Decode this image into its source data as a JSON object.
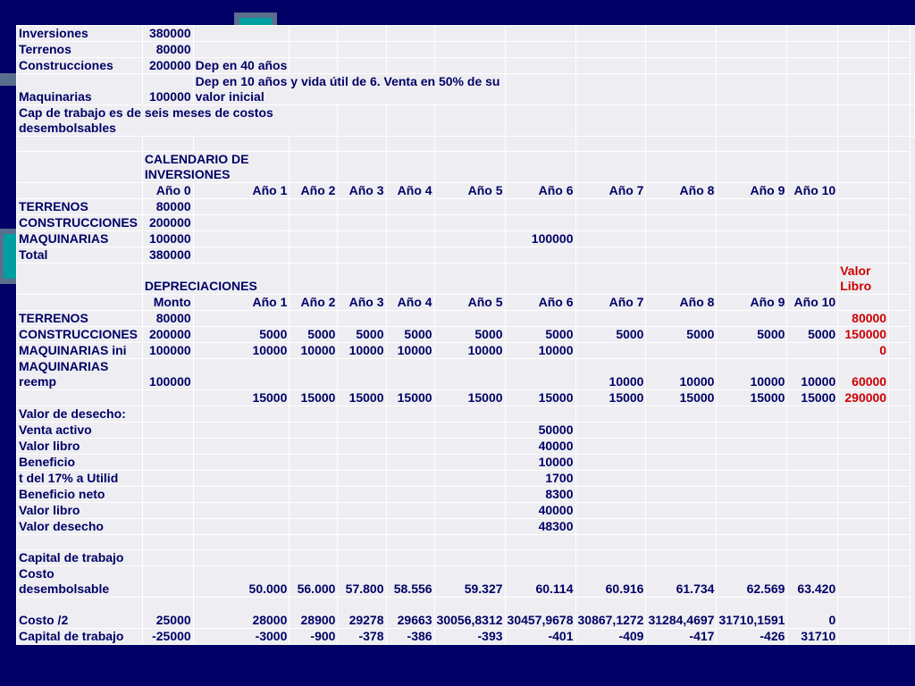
{
  "accent_colors": {
    "background": "#000066",
    "cell": "#eeeef2",
    "text": "#000066",
    "highlight": "#cc0000",
    "teal": "#00a0a0"
  },
  "columns": 15,
  "rows": [
    {
      "h": 17,
      "cells": [
        {
          "t": "Inversiones"
        },
        {
          "t": "380000",
          "r": 1
        },
        {},
        {},
        {},
        {},
        {},
        {},
        {},
        {},
        {},
        {},
        {},
        {}
      ]
    },
    {
      "h": 17,
      "cells": [
        {
          "t": "Terrenos"
        },
        {
          "t": "80000",
          "r": 1
        },
        {},
        {},
        {},
        {},
        {},
        {},
        {},
        {},
        {},
        {},
        {},
        {}
      ]
    },
    {
      "h": 17,
      "cells": [
        {
          "t": "Construcciones"
        },
        {
          "t": "200000",
          "r": 1
        },
        {
          "t": "Dep en 40 años"
        },
        {},
        {},
        {},
        {},
        {},
        {},
        {},
        {},
        {},
        {},
        {}
      ]
    },
    {
      "h": 35,
      "cells": [
        {
          "t": "Maquinarias"
        },
        {
          "t": "100000",
          "r": 1
        },
        {
          "t": "Dep en 10 años y vida útil de 6. Venta en 50% de su valor inicial",
          "span": 5,
          "w": 1
        },
        {},
        {},
        {},
        {},
        {},
        {},
        {},
        {}
      ]
    },
    {
      "h": 35,
      "cells": [
        {
          "t": "Cap de trabajo es de seis meses de costos desembolsables",
          "span": 4,
          "w": 1
        },
        {},
        {},
        {},
        {},
        {},
        {},
        {},
        {},
        {},
        {},
        {}
      ]
    },
    {
      "h": 17,
      "cells": [
        {},
        {},
        {},
        {},
        {},
        {},
        {},
        {},
        {},
        {},
        {},
        {},
        {},
        {}
      ]
    },
    {
      "h": 35,
      "cells": [
        {},
        {
          "t": "CALENDARIO DE INVERSIONES",
          "span": 2,
          "w": 1
        },
        {},
        {},
        {},
        {},
        {},
        {},
        {},
        {},
        {},
        {},
        {}
      ]
    },
    {
      "h": 17,
      "cells": [
        {},
        {
          "t": "Año 0",
          "r": 1
        },
        {
          "t": "Año 1",
          "r": 1
        },
        {
          "t": "Año 2",
          "r": 1
        },
        {
          "t": "Año 3",
          "r": 1
        },
        {
          "t": "Año 4",
          "r": 1
        },
        {
          "t": "Año 5",
          "r": 1
        },
        {
          "t": "Año 6",
          "r": 1
        },
        {
          "t": "Año 7",
          "r": 1
        },
        {
          "t": "Año 8",
          "r": 1
        },
        {
          "t": "Año 9",
          "r": 1
        },
        {
          "t": "Año 10",
          "r": 1
        },
        {},
        {}
      ]
    },
    {
      "h": 17,
      "cells": [
        {
          "t": "TERRENOS"
        },
        {
          "t": "80000",
          "r": 1
        },
        {},
        {},
        {},
        {},
        {},
        {},
        {},
        {},
        {},
        {},
        {},
        {}
      ]
    },
    {
      "h": 17,
      "cells": [
        {
          "t": "CONSTRUCCIONES"
        },
        {
          "t": "200000",
          "r": 1
        },
        {},
        {},
        {},
        {},
        {},
        {},
        {},
        {},
        {},
        {},
        {},
        {}
      ]
    },
    {
      "h": 17,
      "cells": [
        {
          "t": "MAQUINARIAS"
        },
        {
          "t": "100000",
          "r": 1
        },
        {},
        {},
        {},
        {},
        {},
        {
          "t": "100000",
          "r": 1
        },
        {},
        {},
        {},
        {},
        {},
        {}
      ]
    },
    {
      "h": 17,
      "cells": [
        {
          "t": "Total"
        },
        {
          "t": "380000",
          "r": 1
        },
        {},
        {},
        {},
        {},
        {},
        {},
        {},
        {},
        {},
        {},
        {},
        {}
      ]
    },
    {
      "h": 35,
      "cells": [
        {},
        {
          "t": "DEPRECIACIONES",
          "span": 2
        },
        {},
        {},
        {},
        {},
        {},
        {},
        {},
        {},
        {},
        {
          "t": "Valor Libro",
          "w": 1,
          "red": 1
        },
        {}
      ]
    },
    {
      "h": 17,
      "cells": [
        {},
        {
          "t": "Monto",
          "r": 1
        },
        {
          "t": "Año 1",
          "r": 1
        },
        {
          "t": "Año 2",
          "r": 1
        },
        {
          "t": "Año 3",
          "r": 1
        },
        {
          "t": "Año 4",
          "r": 1
        },
        {
          "t": "Año 5",
          "r": 1
        },
        {
          "t": "Año 6",
          "r": 1
        },
        {
          "t": "Año 7",
          "r": 1
        },
        {
          "t": "Año 8",
          "r": 1
        },
        {
          "t": "Año 9",
          "r": 1
        },
        {
          "t": "Año 10",
          "r": 1
        },
        {},
        {}
      ]
    },
    {
      "h": 17,
      "cells": [
        {
          "t": "TERRENOS"
        },
        {
          "t": "80000",
          "r": 1
        },
        {},
        {},
        {},
        {},
        {},
        {},
        {},
        {},
        {},
        {},
        {
          "t": "80000",
          "r": 1,
          "red": 1
        },
        {}
      ]
    },
    {
      "h": 17,
      "cells": [
        {
          "t": "CONSTRUCCIONES"
        },
        {
          "t": "200000",
          "r": 1
        },
        {
          "t": "5000",
          "r": 1
        },
        {
          "t": "5000",
          "r": 1
        },
        {
          "t": "5000",
          "r": 1
        },
        {
          "t": "5000",
          "r": 1
        },
        {
          "t": "5000",
          "r": 1
        },
        {
          "t": "5000",
          "r": 1
        },
        {
          "t": "5000",
          "r": 1
        },
        {
          "t": "5000",
          "r": 1
        },
        {
          "t": "5000",
          "r": 1
        },
        {
          "t": "5000",
          "r": 1
        },
        {
          "t": "150000",
          "r": 1,
          "red": 1
        },
        {}
      ]
    },
    {
      "h": 17,
      "cells": [
        {
          "t": "MAQUINARIAS ini"
        },
        {
          "t": "100000",
          "r": 1
        },
        {
          "t": "10000",
          "r": 1
        },
        {
          "t": "10000",
          "r": 1
        },
        {
          "t": "10000",
          "r": 1
        },
        {
          "t": "10000",
          "r": 1
        },
        {
          "t": "10000",
          "r": 1
        },
        {
          "t": "10000",
          "r": 1
        },
        {},
        {},
        {},
        {},
        {
          "t": "0",
          "r": 1,
          "red": 1
        },
        {}
      ]
    },
    {
      "h": 35,
      "cells": [
        {
          "t": "MAQUINARIAS reemp",
          "w": 1
        },
        {
          "t": "100000",
          "r": 1
        },
        {},
        {},
        {},
        {},
        {},
        {},
        {
          "t": "10000",
          "r": 1
        },
        {
          "t": "10000",
          "r": 1
        },
        {
          "t": "10000",
          "r": 1
        },
        {
          "t": "10000",
          "r": 1
        },
        {
          "t": "60000",
          "r": 1,
          "red": 1
        },
        {}
      ]
    },
    {
      "h": 17,
      "cells": [
        {},
        {},
        {
          "t": "15000",
          "r": 1
        },
        {
          "t": "15000",
          "r": 1
        },
        {
          "t": "15000",
          "r": 1
        },
        {
          "t": "15000",
          "r": 1
        },
        {
          "t": "15000",
          "r": 1
        },
        {
          "t": "15000",
          "r": 1
        },
        {
          "t": "15000",
          "r": 1
        },
        {
          "t": "15000",
          "r": 1
        },
        {
          "t": "15000",
          "r": 1
        },
        {
          "t": "15000",
          "r": 1
        },
        {
          "t": "290000",
          "r": 1,
          "red": 1
        },
        {}
      ]
    },
    {
      "h": 17,
      "cells": [
        {
          "t": "Valor de desecho:"
        },
        {},
        {},
        {},
        {},
        {},
        {},
        {},
        {},
        {},
        {},
        {},
        {},
        {}
      ]
    },
    {
      "h": 17,
      "cells": [
        {
          "t": "Venta activo"
        },
        {},
        {},
        {},
        {},
        {},
        {},
        {
          "t": "50000",
          "r": 1
        },
        {},
        {},
        {},
        {},
        {},
        {}
      ]
    },
    {
      "h": 17,
      "cells": [
        {
          "t": "Valor libro"
        },
        {},
        {},
        {},
        {},
        {},
        {},
        {
          "t": "40000",
          "r": 1
        },
        {},
        {},
        {},
        {},
        {},
        {}
      ]
    },
    {
      "h": 17,
      "cells": [
        {
          "t": "Beneficio"
        },
        {},
        {},
        {},
        {},
        {},
        {},
        {
          "t": "10000",
          "r": 1
        },
        {},
        {},
        {},
        {},
        {},
        {}
      ]
    },
    {
      "h": 17,
      "cells": [
        {
          "t": "t del 17% a Utilid"
        },
        {},
        {},
        {},
        {},
        {},
        {},
        {
          "t": "1700",
          "r": 1
        },
        {},
        {},
        {},
        {},
        {},
        {}
      ]
    },
    {
      "h": 17,
      "cells": [
        {
          "t": "Beneficio neto"
        },
        {},
        {},
        {},
        {},
        {},
        {},
        {
          "t": "8300",
          "r": 1
        },
        {},
        {},
        {},
        {},
        {},
        {}
      ]
    },
    {
      "h": 17,
      "cells": [
        {
          "t": "Valor libro"
        },
        {},
        {},
        {},
        {},
        {},
        {},
        {
          "t": "40000",
          "r": 1
        },
        {},
        {},
        {},
        {},
        {},
        {}
      ]
    },
    {
      "h": 17,
      "cells": [
        {
          "t": "Valor desecho"
        },
        {},
        {},
        {},
        {},
        {},
        {},
        {
          "t": "48300",
          "r": 1
        },
        {},
        {},
        {},
        {},
        {},
        {}
      ]
    },
    {
      "h": 17,
      "cells": [
        {},
        {},
        {},
        {},
        {},
        {},
        {},
        {},
        {},
        {},
        {},
        {},
        {},
        {}
      ]
    },
    {
      "h": 17,
      "cells": [
        {
          "t": "Capital de trabajo"
        },
        {},
        {},
        {},
        {},
        {},
        {},
        {},
        {},
        {},
        {},
        {},
        {},
        {}
      ]
    },
    {
      "h": 35,
      "cells": [
        {
          "t": "Costo desembolsable",
          "w": 1
        },
        {},
        {
          "t": "50.000",
          "r": 1
        },
        {
          "t": "56.000",
          "r": 1
        },
        {
          "t": "57.800",
          "r": 1
        },
        {
          "t": "58.556",
          "r": 1
        },
        {
          "t": "59.327",
          "r": 1
        },
        {
          "t": "60.114",
          "r": 1
        },
        {
          "t": "60.916",
          "r": 1
        },
        {
          "t": "61.734",
          "r": 1
        },
        {
          "t": "62.569",
          "r": 1
        },
        {
          "t": "63.420",
          "r": 1
        },
        {},
        {}
      ]
    },
    {
      "h": 35,
      "cells": [
        {
          "t": "Costo /2"
        },
        {
          "t": "25000",
          "r": 1
        },
        {
          "t": "28000",
          "r": 1
        },
        {
          "t": "28900",
          "r": 1
        },
        {
          "t": "29278",
          "r": 1
        },
        {
          "t": "29663",
          "r": 1
        },
        {
          "t": "30056,8312",
          "r": 1,
          "w": 1
        },
        {
          "t": "30457,9678",
          "r": 1,
          "w": 1
        },
        {
          "t": "30867,1272",
          "r": 1,
          "w": 1
        },
        {
          "t": "31284,4697",
          "r": 1,
          "w": 1
        },
        {
          "t": "31710,1591",
          "r": 1,
          "w": 1
        },
        {
          "t": "0",
          "r": 1
        },
        {},
        {}
      ]
    },
    {
      "h": 17,
      "cells": [
        {
          "t": "Capital de trabajo"
        },
        {
          "t": "-25000",
          "r": 1
        },
        {
          "t": "-3000",
          "r": 1
        },
        {
          "t": "-900",
          "r": 1
        },
        {
          "t": "-378",
          "r": 1
        },
        {
          "t": "-386",
          "r": 1
        },
        {
          "t": "-393",
          "r": 1
        },
        {
          "t": "-401",
          "r": 1
        },
        {
          "t": "-409",
          "r": 1
        },
        {
          "t": "-417",
          "r": 1
        },
        {
          "t": "-426",
          "r": 1
        },
        {
          "t": "31710",
          "r": 1
        },
        {},
        {}
      ]
    }
  ]
}
